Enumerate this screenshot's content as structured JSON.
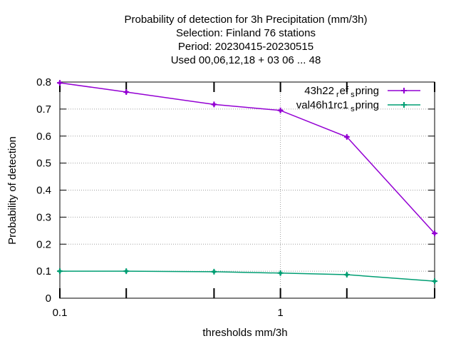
{
  "chart_data": {
    "type": "line",
    "title_lines": [
      "Probability of detection  for 3h Precipitation (mm/3h)",
      "Selection: Finland     76 stations",
      "Period: 20230415-20230515",
      "Used  00,06,12,18  + 03 06 ... 48"
    ],
    "xlabel": "thresholds mm/3h",
    "ylabel": "Probability of detection",
    "x_scale": "log",
    "xlim": [
      0.1,
      5
    ],
    "ylim": [
      0,
      0.8
    ],
    "x_ticks": [
      0.1,
      0.2,
      0.5,
      1,
      2,
      5
    ],
    "x_tick_labels": [
      "0.1",
      "",
      "",
      "1",
      "",
      ""
    ],
    "y_ticks": [
      0,
      0.1,
      0.2,
      0.3,
      0.4,
      0.5,
      0.6,
      0.7,
      0.8
    ],
    "y_tick_labels": [
      "0",
      "0.1",
      "0.2",
      "0.3",
      "0.4",
      "0.5",
      "0.6",
      "0.7",
      "0.8"
    ],
    "grid": true,
    "legend_position": "top-right",
    "x": [
      0.1,
      0.2,
      0.5,
      1,
      2,
      5
    ],
    "series": [
      {
        "name": "43h22_ref_spring",
        "legend_parts": [
          "43h22",
          "r",
          "ef",
          "s",
          "pring"
        ],
        "color": "#9400d3",
        "values": [
          0.797,
          0.763,
          0.717,
          0.695,
          0.597,
          0.24
        ]
      },
      {
        "name": "val46h1rc1_spring",
        "legend_parts": [
          "val46h1rc1",
          "s",
          "pring"
        ],
        "color": "#009e73",
        "values": [
          0.1,
          0.1,
          0.098,
          0.093,
          0.087,
          0.063
        ]
      }
    ]
  }
}
